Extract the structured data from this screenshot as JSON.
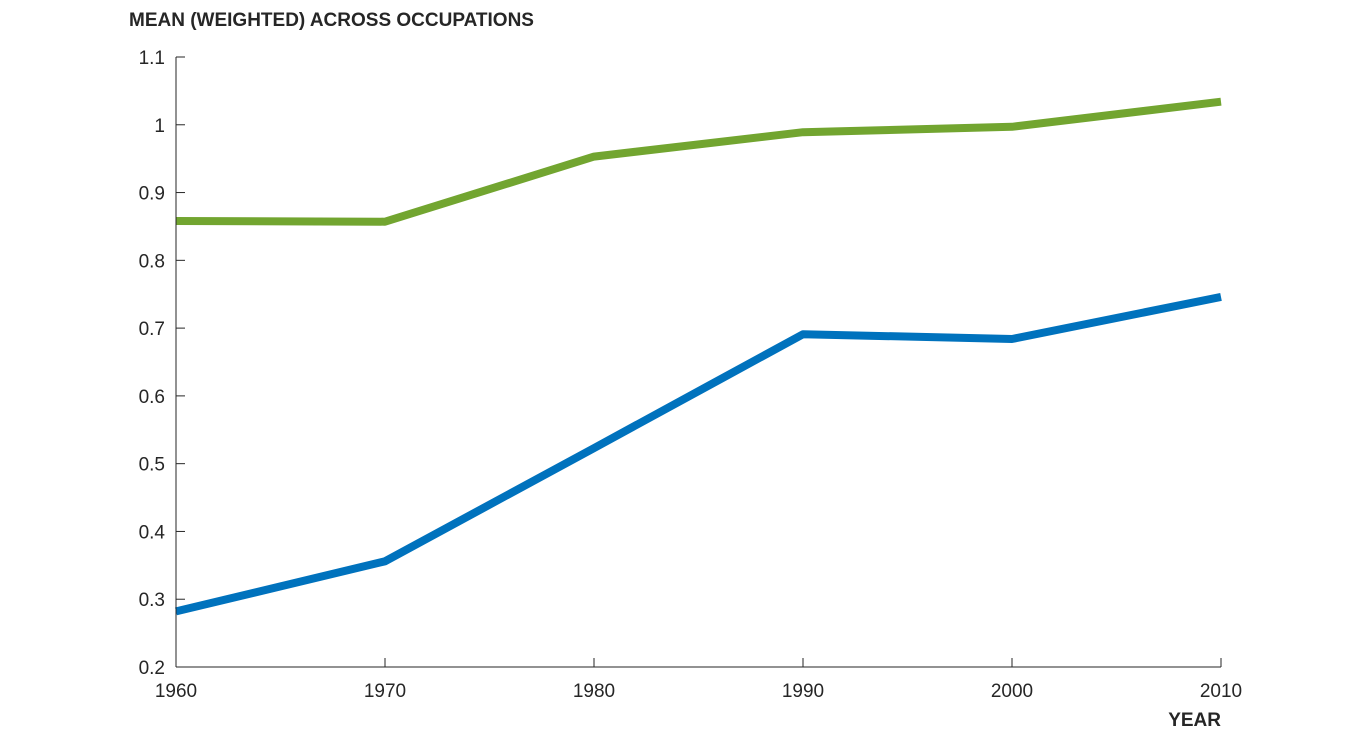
{
  "chart_data": {
    "type": "line",
    "title": "",
    "ylabel": "MEAN (WEIGHTED) ACROSS OCCUPATIONS",
    "xlabel": "YEAR",
    "x": [
      1960,
      1970,
      1980,
      1990,
      2000,
      2010
    ],
    "xlim": [
      1960,
      2010
    ],
    "ylim": [
      0.2,
      1.1
    ],
    "xticks": [
      "1960",
      "1970",
      "1980",
      "1990",
      "2000",
      "2010"
    ],
    "yticks": [
      "0.2",
      "0.3",
      "0.4",
      "0.5",
      "0.6",
      "0.7",
      "0.8",
      "0.9",
      "1",
      "1.1"
    ],
    "grid": false,
    "series": [
      {
        "color": "#72a530",
        "values": [
          0.858,
          0.857,
          0.953,
          0.989,
          0.997,
          1.034
        ]
      },
      {
        "color": "#0072bd",
        "values": [
          0.282,
          0.356,
          0.523,
          0.691,
          0.684,
          0.746
        ]
      }
    ]
  }
}
